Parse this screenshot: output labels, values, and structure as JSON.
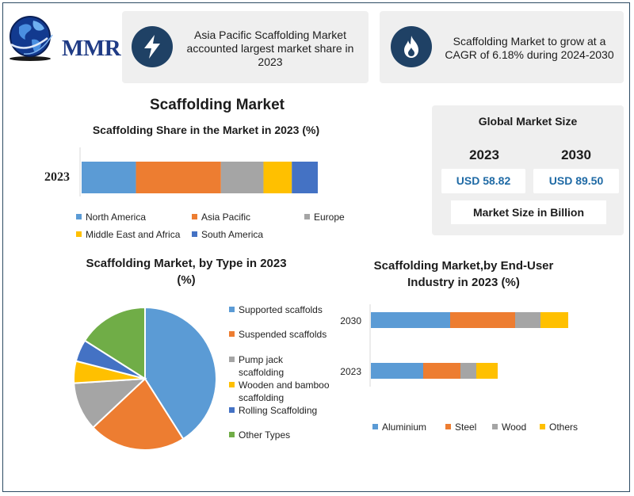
{
  "brand": {
    "logo_text": "MMR"
  },
  "callouts": [
    {
      "text": "Asia Pacific Scaffolding Market accounted largest market share in 2023",
      "icon": "lightning-icon"
    },
    {
      "text": "Scaffolding Market to grow at a CAGR of 6.18% during 2024-2030",
      "icon": "flame-icon"
    }
  ],
  "main_title": "Scaffolding Market",
  "global_market": {
    "title": "Global Market Size",
    "year_a": "2023",
    "year_b": "2030",
    "value_a": "USD 58.82",
    "value_b": "USD 89.50",
    "note": "Market Size in Billion"
  },
  "colors": {
    "blue": "#5b9bd5",
    "orange": "#ed7d31",
    "gray": "#a5a5a5",
    "yellow": "#ffc000",
    "dark_blue": "#4472c4",
    "green": "#70ad47",
    "navy": "#1f4165"
  },
  "chart_data": [
    {
      "type": "bar",
      "orientation": "horizontal-stacked",
      "title": "Scaffolding Share in the Market in 2023 (%)",
      "categories": [
        "2023"
      ],
      "series": [
        {
          "name": "North America",
          "values": [
            23
          ]
        },
        {
          "name": "Asia Pacific",
          "values": [
            36
          ]
        },
        {
          "name": "Europe",
          "values": [
            18
          ]
        },
        {
          "name": "Middle East and Africa",
          "values": [
            12
          ]
        },
        {
          "name": "South America",
          "values": [
            11
          ]
        }
      ],
      "legend": "bottom"
    },
    {
      "type": "pie",
      "title": "Scaffolding Market, by Type in 2023 (%)",
      "labels": [
        "Supported scaffolds",
        "Suspended scaffolds",
        "Pump jack scaffolding",
        "Wooden and bamboo scaffolding",
        "Rolling Scaffolding",
        "Other Types"
      ],
      "values": [
        41,
        22,
        11,
        5,
        5,
        16
      ],
      "legend": "right"
    },
    {
      "type": "bar",
      "orientation": "horizontal-stacked",
      "title": "Scaffolding Market,by End-User Industry in 2023 (%)",
      "categories": [
        "2030",
        "2023"
      ],
      "series": [
        {
          "name": "Aluminium",
          "values": [
            100,
            66
          ]
        },
        {
          "name": "Steel",
          "values": [
            82,
            47
          ]
        },
        {
          "name": "Wood",
          "values": [
            32,
            20
          ]
        },
        {
          "name": "Others",
          "values": [
            35,
            27
          ]
        }
      ],
      "legend": "bottom"
    }
  ]
}
